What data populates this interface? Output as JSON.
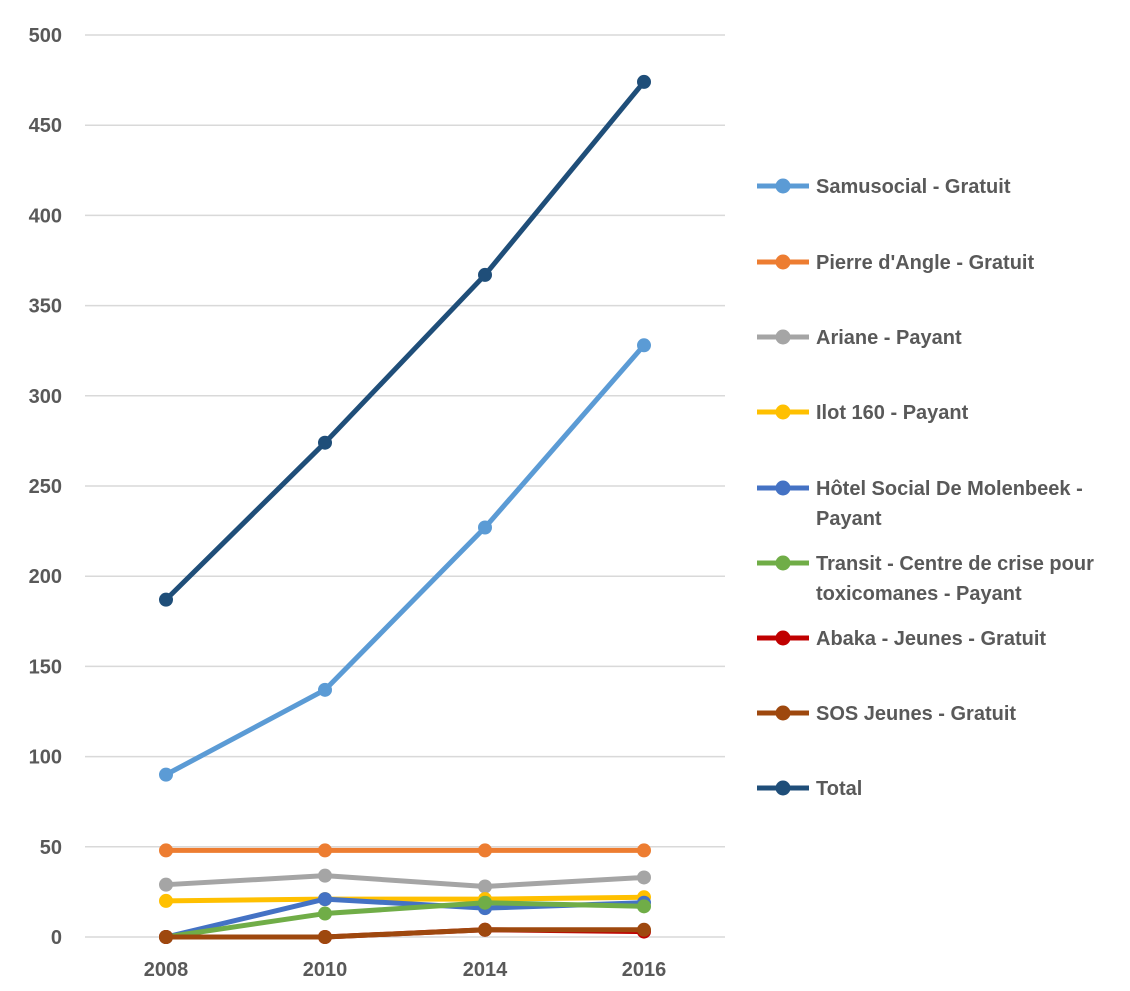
{
  "chart_data": {
    "type": "line",
    "title": "",
    "xlabel": "",
    "ylabel": "",
    "categories": [
      "2008",
      "2010",
      "2014",
      "2016"
    ],
    "ylim": [
      0,
      500
    ],
    "yticks": [
      0,
      50,
      100,
      150,
      200,
      250,
      300,
      350,
      400,
      450,
      500
    ],
    "grid": "horizontal",
    "legend_position": "right",
    "series": [
      {
        "name": "Samusocial - Gratuit",
        "color": "#5B9BD5",
        "values": [
          90,
          137,
          227,
          328
        ]
      },
      {
        "name": "Pierre d'Angle - Gratuit",
        "color": "#ED7D31",
        "values": [
          48,
          48,
          48,
          48
        ]
      },
      {
        "name": "Ariane - Payant",
        "color": "#A5A5A5",
        "values": [
          29,
          34,
          28,
          33
        ]
      },
      {
        "name": "Ilot 160 - Payant",
        "color": "#FFC000",
        "values": [
          20,
          21,
          21,
          22
        ]
      },
      {
        "name": "Hôtel Social De Molenbeek - Payant",
        "color": "#4472C4",
        "values": [
          0,
          21,
          16,
          19
        ]
      },
      {
        "name": "Transit - Centre de crise pour toxicomanes - Payant",
        "color": "#70AD47",
        "values": [
          0,
          13,
          19,
          17
        ]
      },
      {
        "name": "Abaka - Jeunes - Gratuit",
        "color": "#C00000",
        "values": [
          0,
          0,
          4,
          3
        ]
      },
      {
        "name": "SOS Jeunes - Gratuit",
        "color": "#9E480E",
        "values": [
          0,
          0,
          4,
          4
        ]
      },
      {
        "name": "Total",
        "color": "#1F4E79",
        "values": [
          187,
          274,
          367,
          474
        ]
      }
    ]
  }
}
